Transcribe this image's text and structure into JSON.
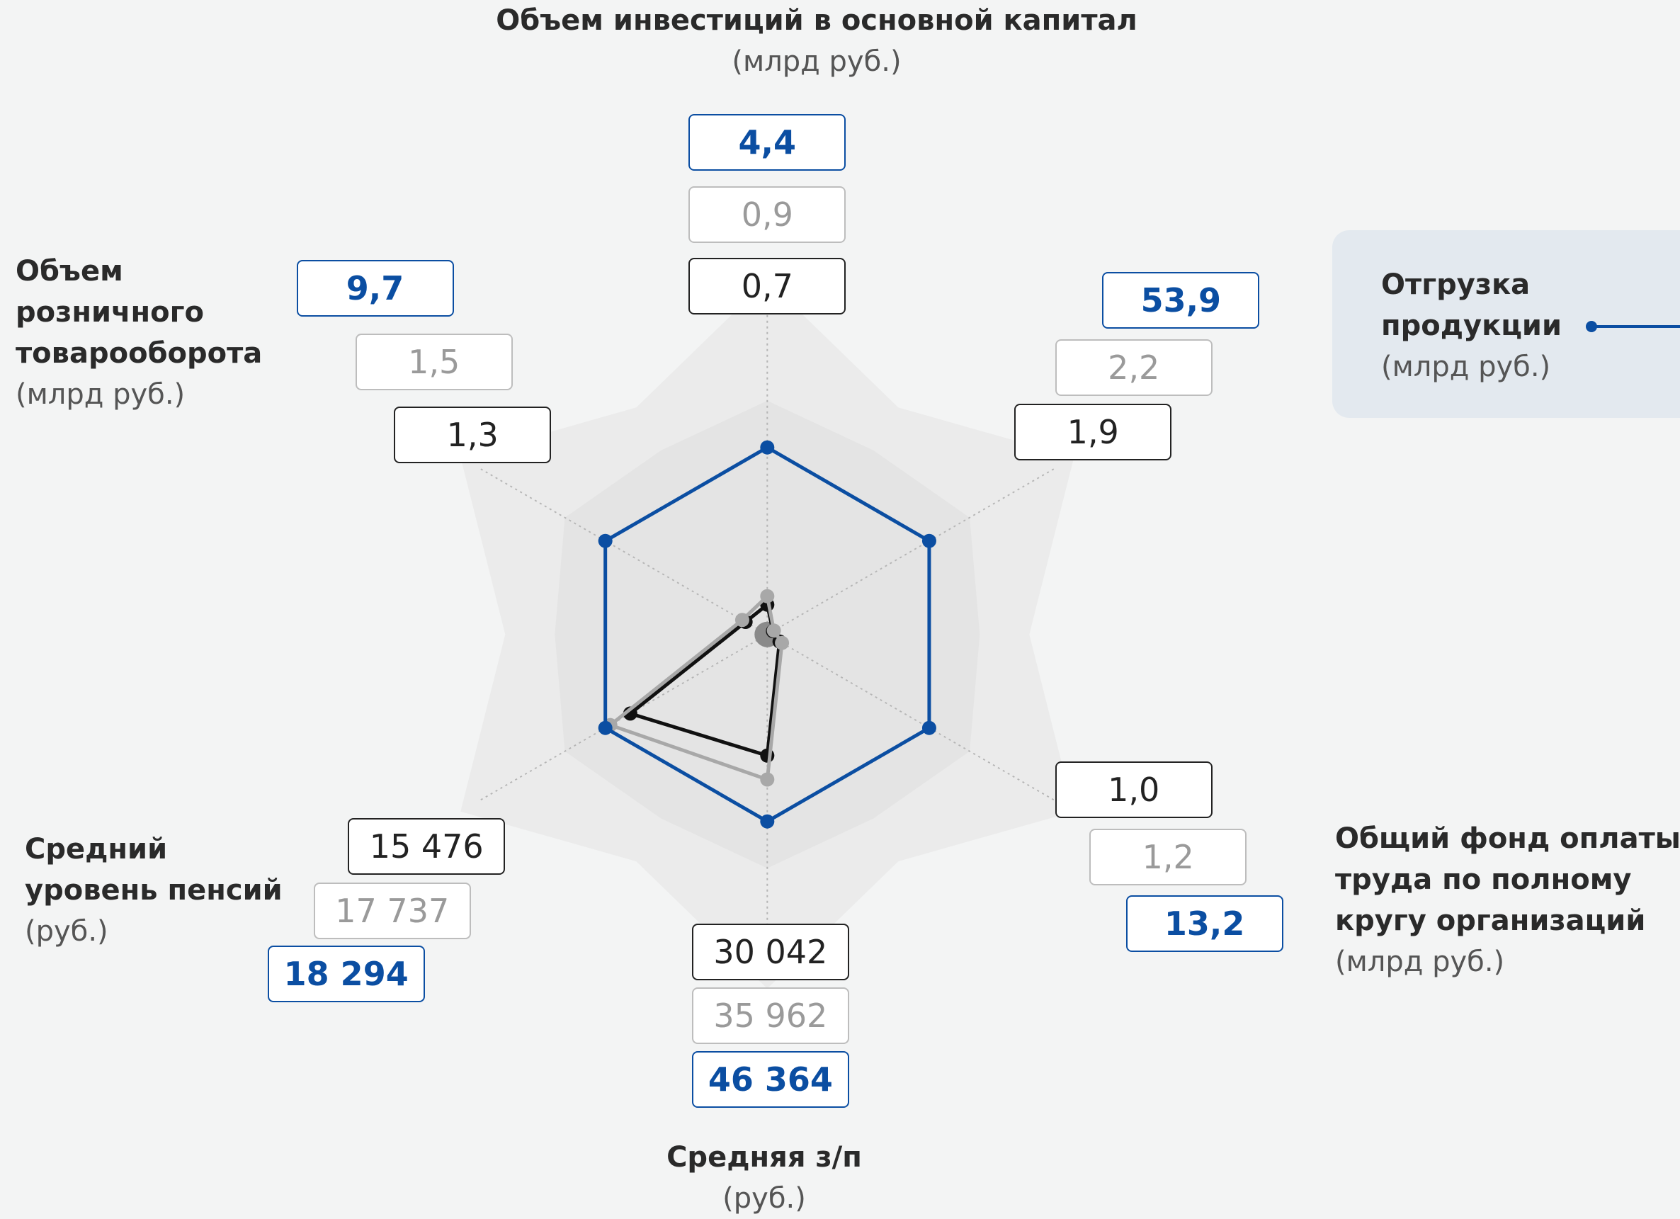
{
  "chart_data": {
    "type": "radar",
    "categories": [
      "Объем инвестиций в основной капитал",
      "Отгрузка продукции",
      "Общий фонд оплаты труда по полному кругу организаций",
      "Средняя з/п",
      "Средний уровень пенсий",
      "Объем розничного товарооборота"
    ],
    "units": [
      "(млрд руб.)",
      "(млрд руб.)",
      "(млрд руб.)",
      "(руб.)",
      "(руб.)",
      "(млрд руб.)"
    ],
    "series": [
      {
        "color": "#0b4ea2",
        "values": [
          4.4,
          53.9,
          13.2,
          46364,
          18294,
          9.7
        ],
        "value_labels": [
          "4,4",
          "53,9",
          "13,2",
          "46 364",
          "18 294",
          "9,7"
        ]
      },
      {
        "color": "#a8a8a8",
        "values": [
          0.9,
          2.2,
          1.2,
          35962,
          17737,
          1.5
        ],
        "value_labels": [
          "0,9",
          "2,2",
          "1,2",
          "35 962",
          "17 737",
          "1,5"
        ]
      },
      {
        "color": "#111111",
        "values": [
          0.7,
          1.9,
          1.0,
          30042,
          15476,
          1.3
        ],
        "value_labels": [
          "0,7",
          "1,9",
          "1,0",
          "30 042",
          "15 476",
          "1,3"
        ]
      }
    ]
  }
}
